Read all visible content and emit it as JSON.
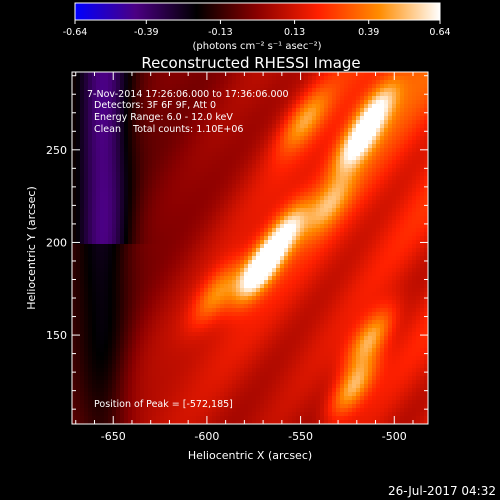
{
  "chart_data": {
    "type": "heatmap",
    "title": "Reconstructed RHESSI Image",
    "xlabel": "Heliocentric X (arcsec)",
    "ylabel": "Heliocentric Y (arcsec)",
    "xlim": [
      -672,
      -482
    ],
    "ylim": [
      102,
      292
    ],
    "x_ticks": [
      -650,
      -600,
      -550,
      -500
    ],
    "y_ticks": [
      150,
      200,
      250
    ],
    "x_tick_labels": [
      "-650",
      "-600",
      "-550",
      "-500"
    ],
    "y_tick_labels": [
      "150",
      "200",
      "250"
    ],
    "colorbar": {
      "range": [
        -0.64,
        0.64
      ],
      "ticks": [
        -0.64,
        -0.39,
        -0.13,
        0.13,
        0.39,
        0.64
      ],
      "tick_labels": [
        "-0.64",
        "-0.39",
        "-0.13",
        "0.13",
        "0.39",
        "0.64"
      ],
      "unit_label": "(photons cm⁻² s⁻¹ asec⁻²)"
    },
    "annotations": [
      "7-Nov-2014 17:26:06.000 to 17:36:06.000",
      "Detectors: 3F 6F 9F, Att 0",
      "Energy Range: 6.0 - 12.0 keV",
      "Clean    Total counts: 1.10E+06"
    ],
    "peak_label": "Position of Peak = [-572,185]",
    "peak": [
      -572,
      185
    ],
    "sources": [
      {
        "x": -572,
        "y": 185,
        "amp": 0.64
      },
      {
        "x": -558,
        "y": 206,
        "amp": 0.42
      },
      {
        "x": -520,
        "y": 253,
        "amp": 0.42
      },
      {
        "x": -510,
        "y": 272,
        "amp": 0.36
      },
      {
        "x": -513,
        "y": 148,
        "amp": 0.4
      },
      {
        "x": -522,
        "y": 122,
        "amp": 0.42
      },
      {
        "x": -595,
        "y": 172,
        "amp": 0.3
      },
      {
        "x": -548,
        "y": 266,
        "amp": 0.28
      },
      {
        "x": -535,
        "y": 220,
        "amp": 0.26
      }
    ],
    "grid": false
  },
  "footer_timestamp": "26-Jul-2017 04:32",
  "colormap": [
    "#0000ff",
    "#4b0082",
    "#000000",
    "#8b0000",
    "#ff2000",
    "#ff8c00",
    "#ffffff"
  ]
}
